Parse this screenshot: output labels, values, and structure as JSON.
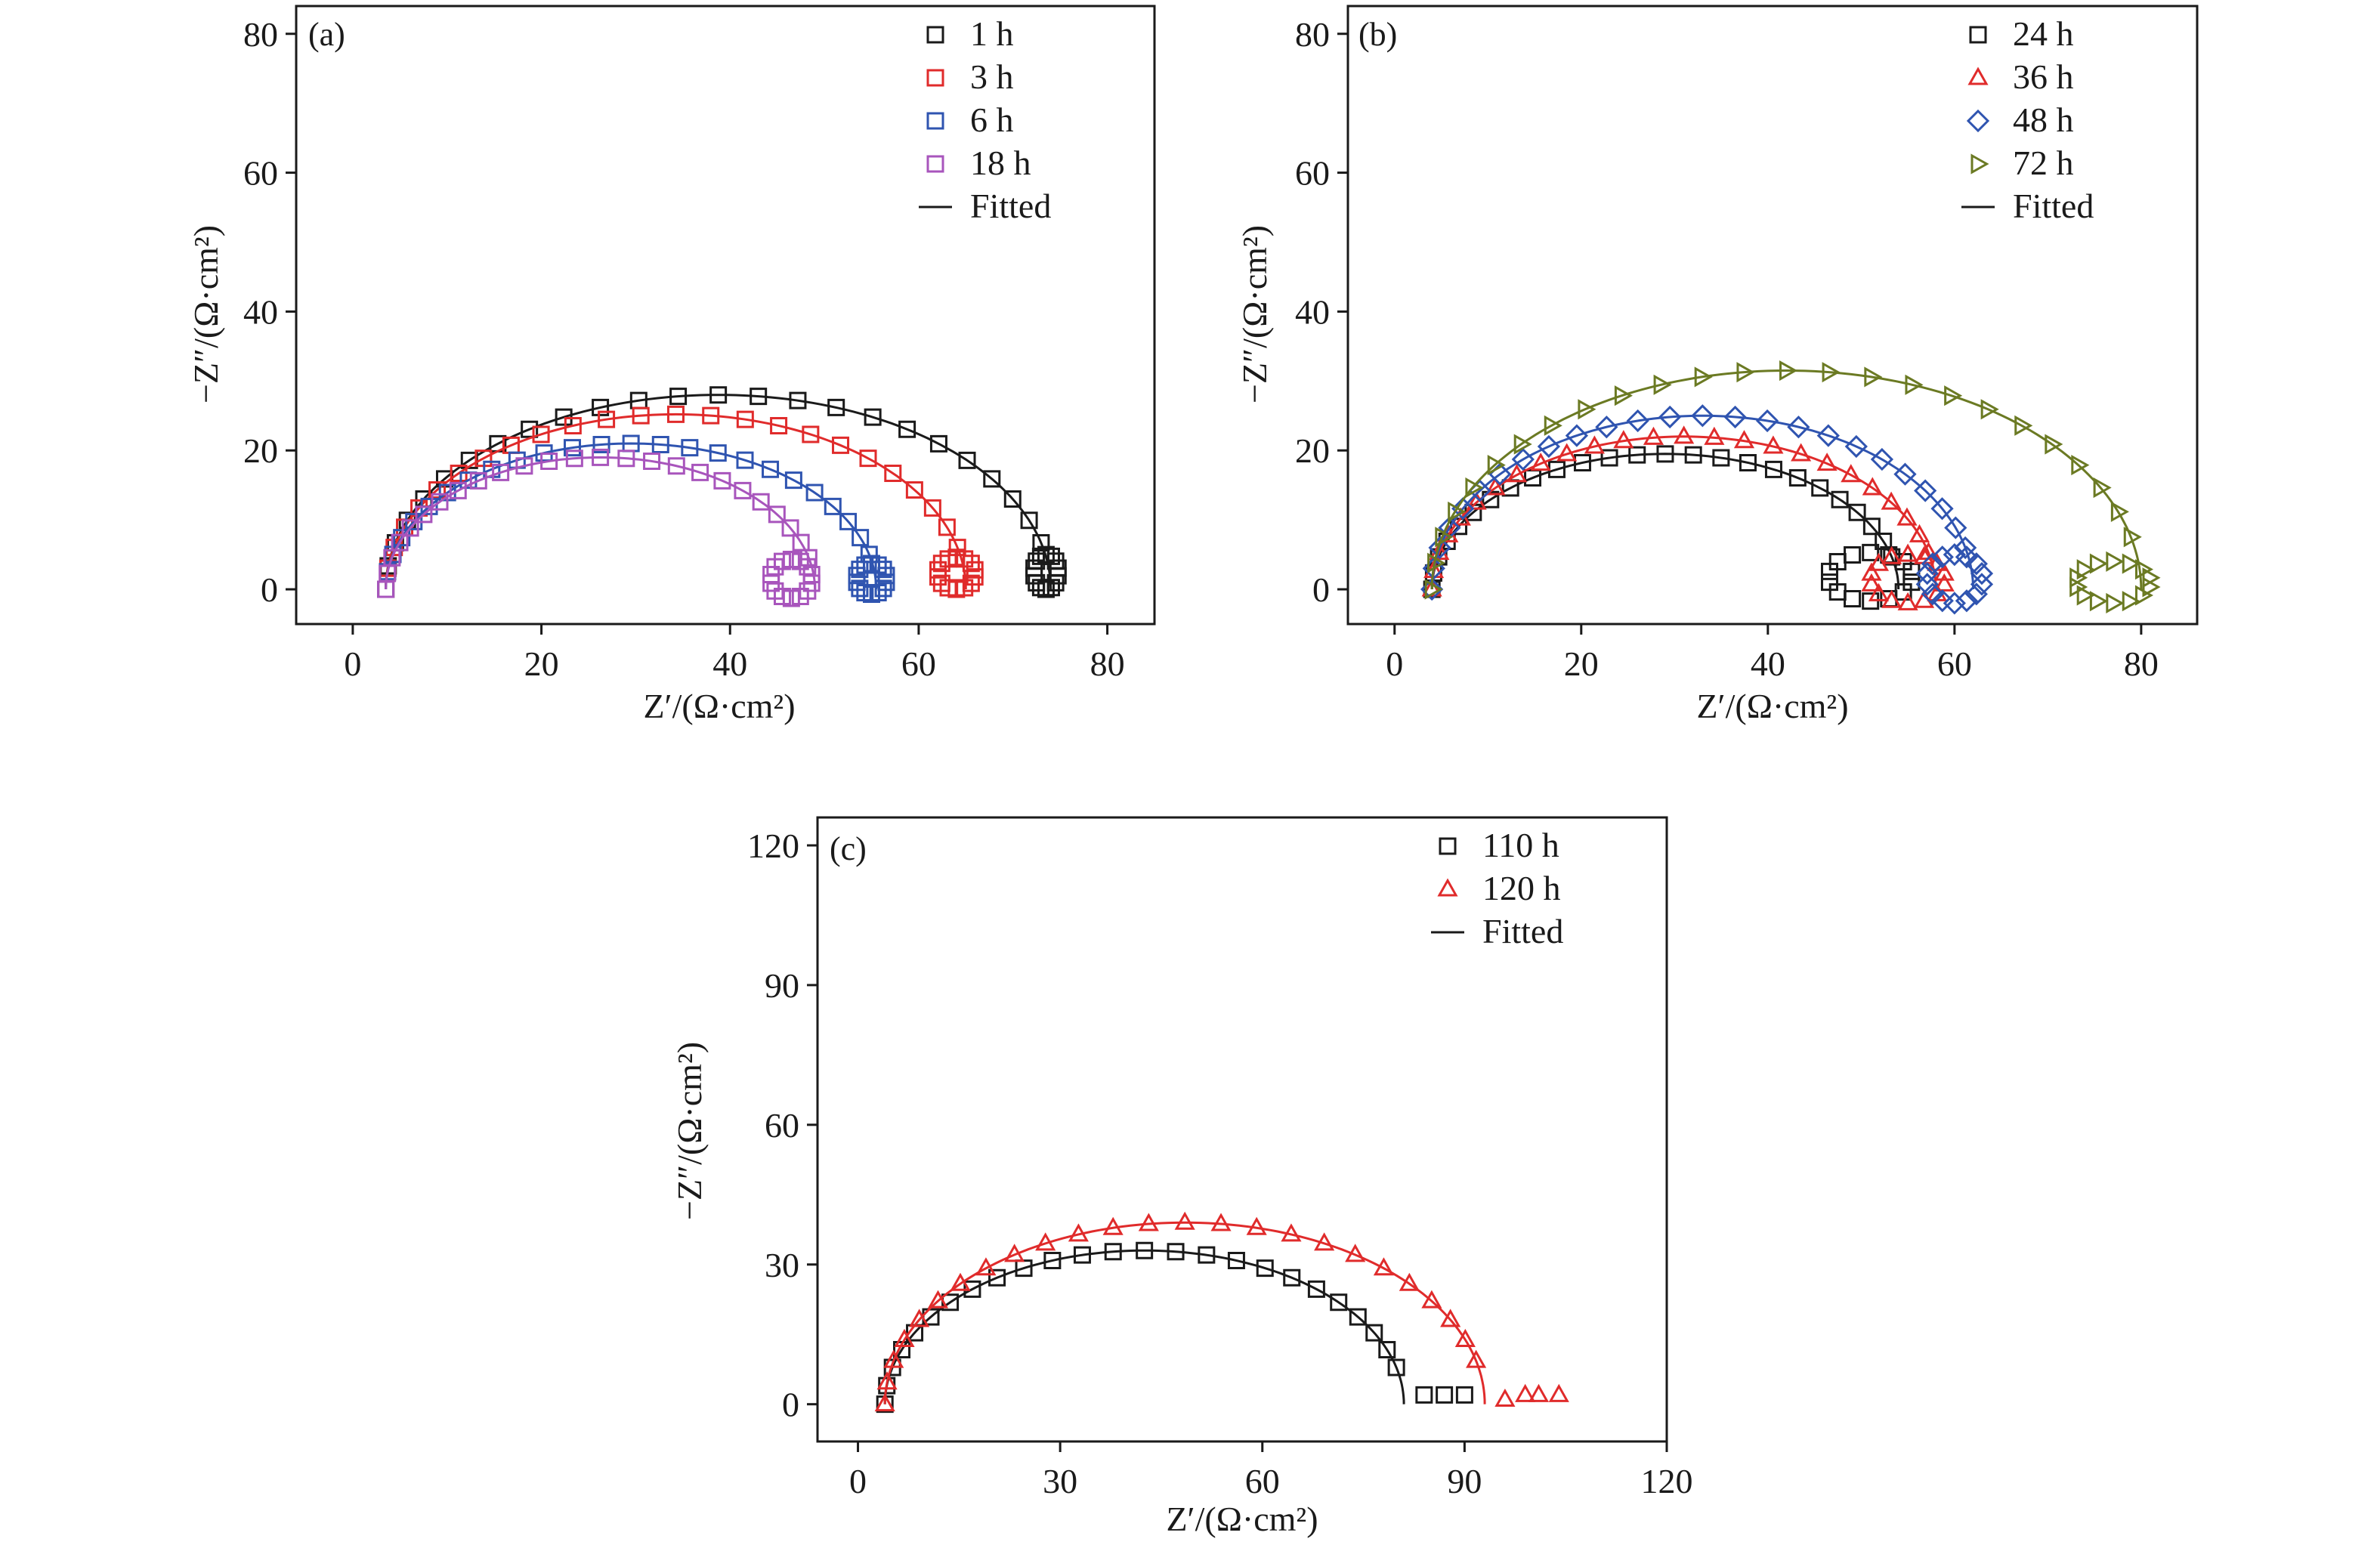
{
  "chart_data": [
    {
      "type": "scatter",
      "panel_label": "(a)",
      "xlabel": "Z′/(Ω·cm²)",
      "ylabel": "−Z″/(Ω·cm²)",
      "xlim": [
        -6,
        85
      ],
      "ylim": [
        -5,
        84
      ],
      "xticks": [
        0,
        20,
        40,
        60,
        80
      ],
      "yticks": [
        0,
        20,
        40,
        60,
        80
      ],
      "fitted_label": "Fitted",
      "legend_position": "top-right",
      "series": [
        {
          "name": "1 h",
          "marker": "square",
          "color": "#1a1a1a",
          "Rs": 3.5,
          "Rct": 70.5,
          "peak": 28,
          "loop": {
            "cx": 73.5,
            "cy": 2.5,
            "rx": 1.3,
            "ry": 2.5
          }
        },
        {
          "name": "3 h",
          "marker": "square",
          "color": "#e02b2b",
          "Rs": 3.5,
          "Rct": 61.5,
          "peak": 25.2,
          "loop": {
            "cx": 64,
            "cy": 2.3,
            "rx": 2.0,
            "ry": 2.3
          }
        },
        {
          "name": "6 h",
          "marker": "square",
          "color": "#2f54b0",
          "Rs": 3.5,
          "Rct": 52,
          "peak": 21,
          "loop": {
            "cx": 55,
            "cy": 1.5,
            "rx": 1.6,
            "ry": 2.2
          }
        },
        {
          "name": "18 h",
          "marker": "square",
          "color": "#a855bc",
          "Rs": 3.5,
          "Rct": 45.5,
          "peak": 19,
          "loop": {
            "cx": 46.5,
            "cy": 1.5,
            "rx": 2.2,
            "ry": 2.8
          }
        }
      ]
    },
    {
      "type": "scatter",
      "panel_label": "(b)",
      "xlabel": "Z′/(Ω·cm²)",
      "ylabel": "−Z″/(Ω·cm²)",
      "xlim": [
        -5,
        86
      ],
      "ylim": [
        -5,
        84
      ],
      "xticks": [
        0,
        20,
        40,
        60,
        80
      ],
      "yticks": [
        0,
        20,
        40,
        60,
        80
      ],
      "fitted_label": "Fitted",
      "legend_position": "top-right",
      "series": [
        {
          "name": "24 h",
          "marker": "square",
          "color": "#1a1a1a",
          "Rs": 4,
          "Rct": 50,
          "peak": 19.5,
          "loop": {
            "cx": 51,
            "cy": 1.8,
            "rx": 4.5,
            "ry": 3.5
          }
        },
        {
          "name": "36 h",
          "marker": "triangle-up",
          "color": "#e02b2b",
          "Rs": 4,
          "Rct": 54,
          "peak": 22,
          "loop": {
            "cx": 55,
            "cy": 1.5,
            "rx": 4,
            "ry": 3.5
          }
        },
        {
          "name": "48 h",
          "marker": "diamond",
          "color": "#2f54b0",
          "Rs": 4,
          "Rct": 58,
          "peak": 25,
          "loop": {
            "cx": 60,
            "cy": 1.5,
            "rx": 3,
            "ry": 3.5
          }
        },
        {
          "name": "72 h",
          "marker": "triangle-right",
          "color": "#6b7a23",
          "Rs": 4,
          "Rct": 76,
          "peak": 31.5,
          "loop": {
            "cx": 77,
            "cy": 1,
            "rx": 4,
            "ry": 3
          }
        }
      ]
    },
    {
      "type": "scatter",
      "panel_label": "(c)",
      "xlabel": "Z′/(Ω·cm²)",
      "ylabel": "−Z″/(Ω·cm²)",
      "xlim": [
        -6,
        120
      ],
      "ylim": [
        -8,
        126
      ],
      "xticks": [
        0,
        30,
        60,
        90,
        120
      ],
      "yticks": [
        0,
        30,
        60,
        90,
        120
      ],
      "fitted_label": "Fitted",
      "legend_position": "top-right",
      "series": [
        {
          "name": "110 h",
          "marker": "square",
          "color": "#1a1a1a",
          "Rs": 4,
          "Rct": 77,
          "peak": 33,
          "tail": [
            [
              84,
              2
            ],
            [
              87,
              2
            ],
            [
              90,
              2
            ]
          ]
        },
        {
          "name": "120 h",
          "marker": "triangle-up",
          "color": "#e02b2b",
          "Rs": 4,
          "Rct": 89,
          "peak": 39,
          "tail": [
            [
              96,
              1
            ],
            [
              99,
              2
            ],
            [
              101,
              2
            ],
            [
              104,
              2
            ]
          ]
        }
      ]
    }
  ]
}
